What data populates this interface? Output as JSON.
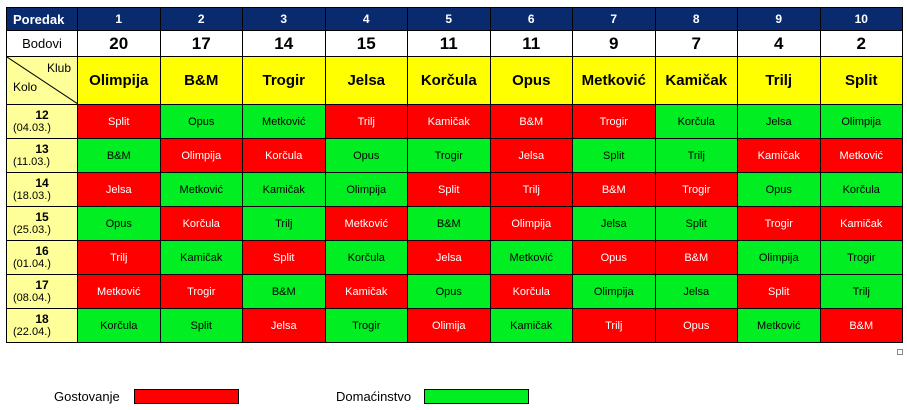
{
  "header": {
    "rank_label": "Poredak",
    "points_label": "Bodovi",
    "klub_label": "Klub",
    "kolo_label": "Kolo",
    "ranks": [
      "1",
      "2",
      "3",
      "4",
      "5",
      "6",
      "7",
      "8",
      "9",
      "10"
    ],
    "points": [
      "20",
      "17",
      "14",
      "15",
      "11",
      "11",
      "9",
      "7",
      "4",
      "2"
    ],
    "teams": [
      "Olimpija",
      "B&M",
      "Trogir",
      "Jelsa",
      "Korčula",
      "Opus",
      "Metković",
      "Kamičak",
      "Trilj",
      "Split"
    ]
  },
  "rounds": [
    {
      "round": "12",
      "date": "(04.03.)",
      "cells": [
        {
          "text": "Split",
          "type": "away"
        },
        {
          "text": "Opus",
          "type": "home"
        },
        {
          "text": "Metković",
          "type": "home"
        },
        {
          "text": "Trilj",
          "type": "away"
        },
        {
          "text": "Kamičak",
          "type": "away"
        },
        {
          "text": "B&M",
          "type": "away"
        },
        {
          "text": "Trogir",
          "type": "away"
        },
        {
          "text": "Korčula",
          "type": "home"
        },
        {
          "text": "Jelsa",
          "type": "home"
        },
        {
          "text": "Olimpija",
          "type": "home"
        }
      ]
    },
    {
      "round": "13",
      "date": "(11.03.)",
      "cells": [
        {
          "text": "B&M",
          "type": "home"
        },
        {
          "text": "Olimpija",
          "type": "away"
        },
        {
          "text": "Korčula",
          "type": "away"
        },
        {
          "text": "Opus",
          "type": "home"
        },
        {
          "text": "Trogir",
          "type": "home"
        },
        {
          "text": "Jelsa",
          "type": "away"
        },
        {
          "text": "Split",
          "type": "home"
        },
        {
          "text": "Trilj",
          "type": "home"
        },
        {
          "text": "Kamičak",
          "type": "away"
        },
        {
          "text": "Metković",
          "type": "away"
        }
      ]
    },
    {
      "round": "14",
      "date": "(18.03.)",
      "cells": [
        {
          "text": "Jelsa",
          "type": "away"
        },
        {
          "text": "Metković",
          "type": "home"
        },
        {
          "text": "Kamičak",
          "type": "home"
        },
        {
          "text": "Olimpija",
          "type": "home"
        },
        {
          "text": "Split",
          "type": "away"
        },
        {
          "text": "Trilj",
          "type": "away"
        },
        {
          "text": "B&M",
          "type": "away"
        },
        {
          "text": "Trogir",
          "type": "away"
        },
        {
          "text": "Opus",
          "type": "home"
        },
        {
          "text": "Korčula",
          "type": "home"
        }
      ]
    },
    {
      "round": "15",
      "date": "(25.03.)",
      "cells": [
        {
          "text": "Opus",
          "type": "home"
        },
        {
          "text": "Korčula",
          "type": "away"
        },
        {
          "text": "Trilj",
          "type": "home"
        },
        {
          "text": "Metković",
          "type": "away"
        },
        {
          "text": "B&M",
          "type": "home"
        },
        {
          "text": "Olimpija",
          "type": "away"
        },
        {
          "text": "Jelsa",
          "type": "home"
        },
        {
          "text": "Split",
          "type": "home"
        },
        {
          "text": "Trogir",
          "type": "away"
        },
        {
          "text": "Kamičak",
          "type": "away"
        }
      ]
    },
    {
      "round": "16",
      "date": "(01.04.)",
      "cells": [
        {
          "text": "Trilj",
          "type": "away"
        },
        {
          "text": "Kamičak",
          "type": "home"
        },
        {
          "text": "Split",
          "type": "away"
        },
        {
          "text": "Korčula",
          "type": "home"
        },
        {
          "text": "Jelsa",
          "type": "away"
        },
        {
          "text": "Metković",
          "type": "home"
        },
        {
          "text": "Opus",
          "type": "away"
        },
        {
          "text": "B&M",
          "type": "away"
        },
        {
          "text": "Olimpija",
          "type": "home"
        },
        {
          "text": "Trogir",
          "type": "home"
        }
      ]
    },
    {
      "round": "17",
      "date": "(08.04.)",
      "cells": [
        {
          "text": "Metković",
          "type": "away"
        },
        {
          "text": "Trogir",
          "type": "away"
        },
        {
          "text": "B&M",
          "type": "home"
        },
        {
          "text": "Kamičak",
          "type": "away"
        },
        {
          "text": "Opus",
          "type": "home"
        },
        {
          "text": "Korčula",
          "type": "away"
        },
        {
          "text": "Olimpija",
          "type": "home"
        },
        {
          "text": "Jelsa",
          "type": "home"
        },
        {
          "text": "Split",
          "type": "away"
        },
        {
          "text": "Trilj",
          "type": "home"
        }
      ]
    },
    {
      "round": "18",
      "date": "(22.04.)",
      "cells": [
        {
          "text": "Korčula",
          "type": "home"
        },
        {
          "text": "Split",
          "type": "home"
        },
        {
          "text": "Jelsa",
          "type": "away"
        },
        {
          "text": "Trogir",
          "type": "home"
        },
        {
          "text": "Olimija",
          "type": "away"
        },
        {
          "text": "Kamičak",
          "type": "home"
        },
        {
          "text": "Trilj",
          "type": "away"
        },
        {
          "text": "Opus",
          "type": "away"
        },
        {
          "text": "Metković",
          "type": "home"
        },
        {
          "text": "B&M",
          "type": "away"
        }
      ]
    }
  ],
  "legend": {
    "away_label": "Gostovanje",
    "home_label": "Domaćinstvo",
    "away_color": "#ff0000",
    "home_color": "#00ee22"
  }
}
